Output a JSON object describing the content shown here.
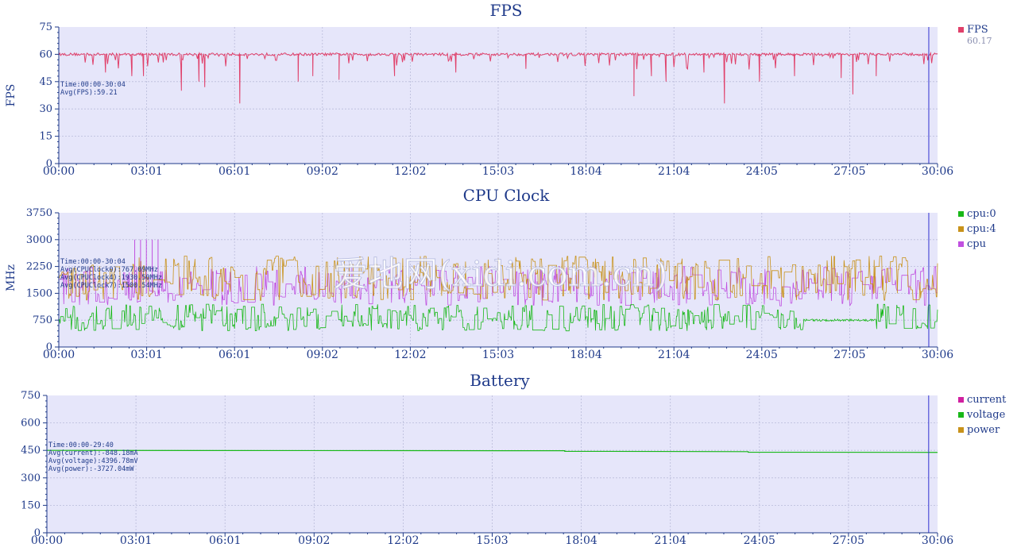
{
  "watermark": "爱地网(xidi.com.cn)",
  "colors": {
    "plot_bg": "#e6e6fa",
    "axis": "#1f3a8a",
    "grid": "#b9bbd9",
    "cursor": "#3030d0"
  },
  "chart_data": [
    {
      "id": "fps",
      "type": "line",
      "title": "FPS",
      "ylabel": "FPS",
      "xlabel": "",
      "ylim": [
        0,
        75
      ],
      "yticks": [
        "0",
        "15",
        "30",
        "45",
        "60",
        "75"
      ],
      "xticks": [
        "00:00",
        "03:01",
        "06:01",
        "09:02",
        "12:02",
        "15:03",
        "18:04",
        "21:04",
        "24:05",
        "27:05",
        "30:06"
      ],
      "grid": true,
      "legend_position": "right",
      "stats": [
        "Time:00:00-30:04",
        "Avg(FPS):59.21"
      ],
      "series": [
        {
          "name": "FPS",
          "color": "#e0406a",
          "current": "60.17",
          "baseline": 60,
          "noise": 1.5,
          "dips": [
            [
              1.6,
              50
            ],
            [
              2.5,
              48
            ],
            [
              2.9,
              48
            ],
            [
              4.2,
              40
            ],
            [
              4.8,
              45
            ],
            [
              5.0,
              42
            ],
            [
              6.2,
              33
            ],
            [
              8.2,
              45
            ],
            [
              8.7,
              48
            ],
            [
              9.6,
              46
            ],
            [
              11.5,
              48
            ],
            [
              13.6,
              50
            ],
            [
              16.0,
              52
            ],
            [
              19.7,
              37
            ],
            [
              20.3,
              48
            ],
            [
              20.8,
              45
            ],
            [
              22.1,
              50
            ],
            [
              22.8,
              33
            ],
            [
              24.0,
              45
            ],
            [
              25.2,
              48
            ],
            [
              26.8,
              47
            ],
            [
              27.2,
              38
            ],
            [
              28.0,
              48
            ]
          ],
          "line_width": 1
        }
      ],
      "cursor_x": 29.8
    },
    {
      "id": "cpu",
      "type": "line",
      "title": "CPU Clock",
      "ylabel": "MHz",
      "xlabel": "",
      "ylim": [
        0,
        3750
      ],
      "yticks": [
        "0",
        "750",
        "1500",
        "2250",
        "3000",
        "3750"
      ],
      "xticks": [
        "00:00",
        "03:01",
        "06:01",
        "09:02",
        "12:02",
        "15:03",
        "18:04",
        "21:04",
        "24:05",
        "27:05",
        "30:06"
      ],
      "grid": true,
      "legend_position": "right",
      "stats": [
        "Time:00:00-30:04",
        "Avg(CPUClock0):767.09MHz",
        "Avg(CPUClock4):1930.50MHz",
        "Avg(CPUClock7):1500.54MHz"
      ],
      "series": [
        {
          "name": "cpu:0",
          "color": "#18b818",
          "low": 450,
          "high": 1200,
          "avg": 767
        },
        {
          "name": "cpu:4",
          "color": "#c8921a",
          "low": 1300,
          "high": 2550,
          "avg": 1930
        },
        {
          "name": "cpu",
          "color": "#c050e0",
          "low": 1150,
          "high": 2250,
          "avg": 1500
        }
      ],
      "cursor_x": 29.8
    },
    {
      "id": "battery",
      "type": "line",
      "title": "Battery",
      "ylabel": "",
      "xlabel": "",
      "ylim": [
        0,
        750
      ],
      "yticks": [
        "0",
        "150",
        "300",
        "450",
        "600",
        "750"
      ],
      "xticks": [
        "00:00",
        "03:01",
        "06:01",
        "09:02",
        "12:02",
        "15:03",
        "18:04",
        "21:04",
        "24:05",
        "27:05",
        "30:06"
      ],
      "grid": true,
      "legend_position": "right",
      "stats": [
        "Time:00:00-29:40",
        "Avg(current):-848.18mA",
        "Avg(voltage):4396.78mV",
        "Avg(power):-3727.04mW"
      ],
      "series": [
        {
          "name": "current",
          "color": "#d020a0"
        },
        {
          "name": "voltage",
          "color": "#18b818",
          "start": 450,
          "end": 439
        },
        {
          "name": "power",
          "color": "#c8921a"
        }
      ],
      "cursor_x": 29.8
    }
  ]
}
